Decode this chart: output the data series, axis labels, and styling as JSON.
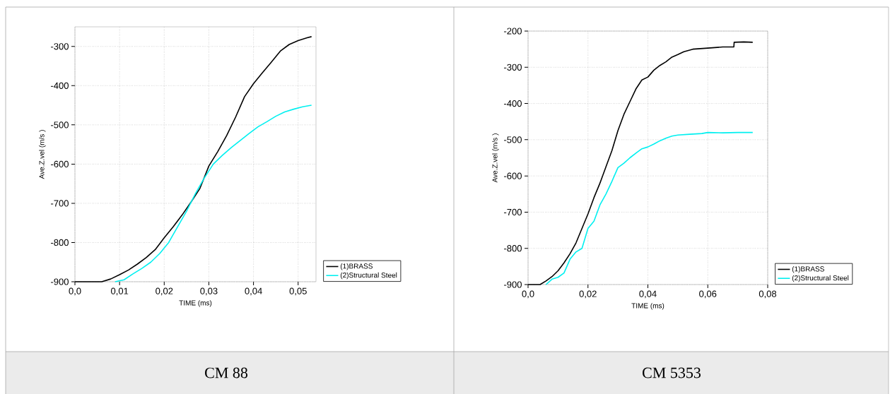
{
  "chart_data": [
    {
      "type": "line",
      "xlabel": "TIME (ms)",
      "ylabel": "Ave.Z.vel (m/s )",
      "annotations": [
        "CM 88"
      ],
      "xlim": [
        0,
        0.054
      ],
      "ylim": [
        -900,
        -250
      ],
      "xticks": [
        {
          "value": 0,
          "label": "0,0"
        },
        {
          "value": 0.01,
          "label": "0,01"
        },
        {
          "value": 0.02,
          "label": "0,02"
        },
        {
          "value": 0.03,
          "label": "0,03"
        },
        {
          "value": 0.04,
          "label": "0,04"
        },
        {
          "value": 0.05,
          "label": "0,05"
        }
      ],
      "yticks": [
        -900,
        -800,
        -700,
        -600,
        -500,
        -400,
        -300
      ],
      "grid": true,
      "legend": "bottom right",
      "series": [
        {
          "name": "(1)BRASS",
          "color": "#000000",
          "x": [
            0,
            0.006,
            0.008,
            0.01,
            0.012,
            0.014,
            0.016,
            0.018,
            0.02,
            0.022,
            0.024,
            0.026,
            0.028,
            0.03,
            0.032,
            0.034,
            0.036,
            0.038,
            0.04,
            0.042,
            0.044,
            0.046,
            0.048,
            0.05,
            0.052,
            0.053
          ],
          "values": [
            -900,
            -900,
            -893,
            -882,
            -870,
            -855,
            -838,
            -818,
            -788,
            -760,
            -730,
            -697,
            -662,
            -605,
            -568,
            -527,
            -480,
            -428,
            -395,
            -367,
            -340,
            -312,
            -295,
            -285,
            -278,
            -275
          ]
        },
        {
          "name": "(2)Structural Steel",
          "color": "#00f0f0",
          "x": [
            0.009,
            0.011,
            0.013,
            0.015,
            0.017,
            0.019,
            0.021,
            0.023,
            0.025,
            0.027,
            0.029,
            0.031,
            0.033,
            0.035,
            0.037,
            0.039,
            0.041,
            0.043,
            0.045,
            0.047,
            0.049,
            0.051,
            0.053
          ],
          "values": [
            -900,
            -895,
            -880,
            -866,
            -850,
            -828,
            -800,
            -760,
            -720,
            -675,
            -635,
            -600,
            -578,
            -558,
            -540,
            -522,
            -505,
            -492,
            -478,
            -467,
            -460,
            -454,
            -450
          ]
        }
      ]
    },
    {
      "type": "line",
      "xlabel": "TIME (ms)",
      "ylabel": "Ave.Z.vel (m/s )",
      "annotations": [
        "CM 5353"
      ],
      "xlim": [
        0,
        0.08
      ],
      "ylim": [
        -900,
        -200
      ],
      "xticks": [
        {
          "value": 0,
          "label": "0,0"
        },
        {
          "value": 0.02,
          "label": "0,02"
        },
        {
          "value": 0.04,
          "label": "0,04"
        },
        {
          "value": 0.06,
          "label": "0,06"
        },
        {
          "value": 0.08,
          "label": "0,08"
        }
      ],
      "yticks": [
        -900,
        -800,
        -700,
        -600,
        -500,
        -400,
        -300,
        -200
      ],
      "grid": true,
      "legend": "bottom right",
      "series": [
        {
          "name": "(1)BRASS",
          "color": "#000000",
          "x": [
            0,
            0.004,
            0.006,
            0.008,
            0.01,
            0.012,
            0.014,
            0.016,
            0.018,
            0.02,
            0.022,
            0.024,
            0.026,
            0.028,
            0.03,
            0.032,
            0.034,
            0.036,
            0.038,
            0.04,
            0.042,
            0.044,
            0.046,
            0.048,
            0.05,
            0.052,
            0.055,
            0.06,
            0.065,
            0.0687,
            0.0688,
            0.072,
            0.075
          ],
          "values": [
            -900,
            -900,
            -890,
            -878,
            -862,
            -840,
            -815,
            -785,
            -745,
            -705,
            -660,
            -620,
            -575,
            -530,
            -475,
            -430,
            -395,
            -360,
            -335,
            -327,
            -308,
            -295,
            -285,
            -272,
            -265,
            -257,
            -250,
            -247,
            -244,
            -244,
            -231,
            -230,
            -231
          ]
        },
        {
          "name": "(2)Structural Steel",
          "color": "#00f0f0",
          "x": [
            0.006,
            0.008,
            0.01,
            0.012,
            0.014,
            0.016,
            0.018,
            0.02,
            0.022,
            0.024,
            0.026,
            0.028,
            0.03,
            0.032,
            0.034,
            0.036,
            0.038,
            0.04,
            0.042,
            0.044,
            0.046,
            0.048,
            0.05,
            0.054,
            0.058,
            0.06,
            0.065,
            0.07,
            0.075
          ],
          "values": [
            -900,
            -885,
            -880,
            -868,
            -830,
            -810,
            -800,
            -745,
            -725,
            -680,
            -650,
            -615,
            -577,
            -565,
            -550,
            -537,
            -525,
            -520,
            -512,
            -503,
            -496,
            -490,
            -487,
            -485,
            -483,
            -480,
            -481,
            -480,
            -480
          ]
        }
      ]
    }
  ]
}
